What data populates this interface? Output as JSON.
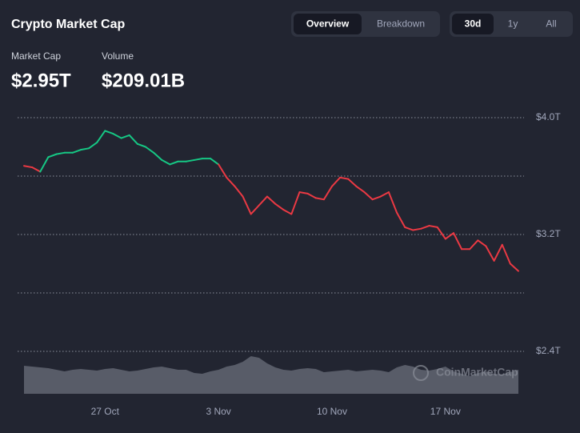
{
  "header": {
    "title": "Crypto Market Cap",
    "view_tabs": [
      "Overview",
      "Breakdown"
    ],
    "active_view_tab": 0,
    "range_tabs": [
      "30d",
      "1y",
      "All"
    ],
    "active_range_tab": 0,
    "stats": [
      {
        "label": "Market Cap",
        "value": "$2.95T"
      },
      {
        "label": "Volume",
        "value": "$209.01B"
      }
    ]
  },
  "chart_data": {
    "type": "line",
    "categories": [
      null,
      null,
      null,
      null,
      null,
      null,
      null,
      null,
      null,
      null,
      "27 Oct",
      null,
      null,
      null,
      null,
      null,
      null,
      null,
      null,
      null,
      null,
      null,
      null,
      null,
      "3 Nov",
      null,
      null,
      null,
      null,
      null,
      null,
      null,
      null,
      null,
      null,
      null,
      null,
      null,
      "10 Nov",
      null,
      null,
      null,
      null,
      null,
      null,
      null,
      null,
      null,
      null,
      null,
      null,
      null,
      "17 Nov",
      null,
      null,
      null,
      null,
      null,
      null,
      null,
      null,
      null
    ],
    "series": [
      {
        "name": "Market Cap",
        "up_color": "#16c784",
        "down_color": "#ea3943",
        "values": [
          3.67,
          3.66,
          3.63,
          3.73,
          3.75,
          3.76,
          3.76,
          3.78,
          3.79,
          3.83,
          3.91,
          3.89,
          3.86,
          3.88,
          3.82,
          3.8,
          3.76,
          3.71,
          3.68,
          3.7,
          3.7,
          3.71,
          3.72,
          3.72,
          3.68,
          3.59,
          3.53,
          3.46,
          3.34,
          3.4,
          3.46,
          3.41,
          3.37,
          3.34,
          3.49,
          3.48,
          3.45,
          3.44,
          3.53,
          3.59,
          3.58,
          3.53,
          3.49,
          3.44,
          3.46,
          3.49,
          3.35,
          3.25,
          3.23,
          3.24,
          3.26,
          3.25,
          3.17,
          3.21,
          3.1,
          3.1,
          3.16,
          3.12,
          3.02,
          3.13,
          3.0,
          2.95
        ]
      },
      {
        "name": "Volume",
        "color": "#585c68",
        "values": [
          175,
          170,
          165,
          160,
          150,
          140,
          150,
          155,
          150,
          145,
          155,
          160,
          150,
          140,
          145,
          155,
          165,
          170,
          160,
          150,
          150,
          130,
          125,
          140,
          150,
          170,
          180,
          200,
          235,
          225,
          190,
          165,
          150,
          145,
          155,
          160,
          155,
          135,
          140,
          145,
          150,
          140,
          145,
          150,
          145,
          135,
          165,
          180,
          170,
          150,
          145,
          155,
          170,
          140,
          125,
          110,
          130,
          140,
          125,
          120,
          135,
          150
        ]
      }
    ],
    "ylim": [
      2.4,
      4.0
    ],
    "yticks": [
      {
        "value": 4.0,
        "label": "$4.0T"
      },
      {
        "value": 3.2,
        "label": "$3.2T"
      },
      {
        "value": 2.4,
        "label": "$2.4T"
      }
    ],
    "grid_lines": [
      4.0,
      3.6,
      3.2,
      2.8,
      2.4
    ],
    "grid": true,
    "watermark": "CoinMarketCap"
  }
}
